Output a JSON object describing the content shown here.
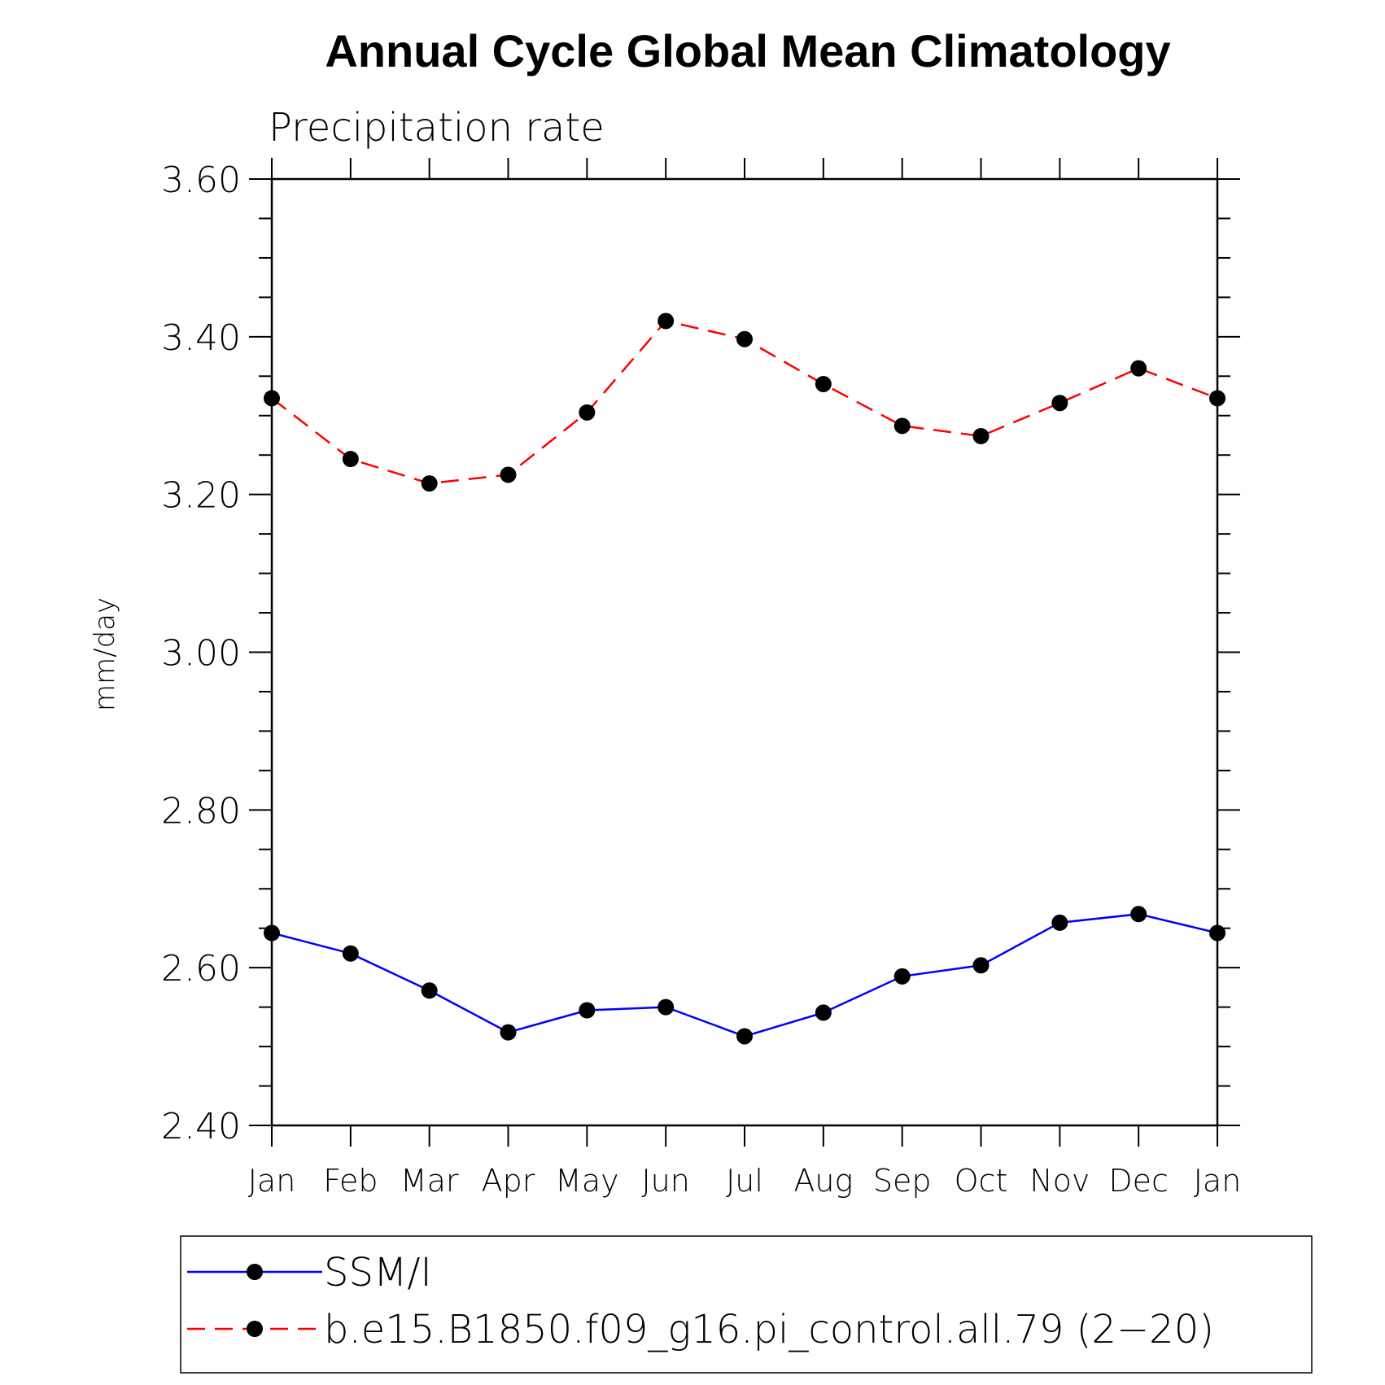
{
  "chart_data": {
    "type": "line",
    "title": "Annual Cycle Global Mean Climatology",
    "subtitle": "Precipitation rate",
    "ylabel": "mm/day",
    "xlabel": "",
    "categories": [
      "Jan",
      "Feb",
      "Mar",
      "Apr",
      "May",
      "Jun",
      "Jul",
      "Aug",
      "Sep",
      "Oct",
      "Nov",
      "Dec",
      "Jan"
    ],
    "ylim": [
      2.4,
      3.6
    ],
    "yticks": [
      "2.40",
      "2.60",
      "2.80",
      "3.00",
      "3.20",
      "3.40",
      "3.60"
    ],
    "y_minor_step": 0.05,
    "grid": false,
    "legend_position": "bottom",
    "series": [
      {
        "name": "SSM/I",
        "color": "#0000ff",
        "line_style": "solid",
        "marker": "filled-circle",
        "values": [
          2.644,
          2.618,
          2.571,
          2.518,
          2.546,
          2.55,
          2.513,
          2.543,
          2.589,
          2.603,
          2.657,
          2.668,
          2.644
        ]
      },
      {
        "name": "b.e15.B1850.f09_g16.pi_control.all.79 (2−20)",
        "color": "#ff0000",
        "line_style": "dashed",
        "marker": "filled-circle",
        "values": [
          3.322,
          3.245,
          3.214,
          3.225,
          3.304,
          3.42,
          3.397,
          3.34,
          3.287,
          3.274,
          3.316,
          3.36,
          3.322
        ]
      }
    ]
  }
}
